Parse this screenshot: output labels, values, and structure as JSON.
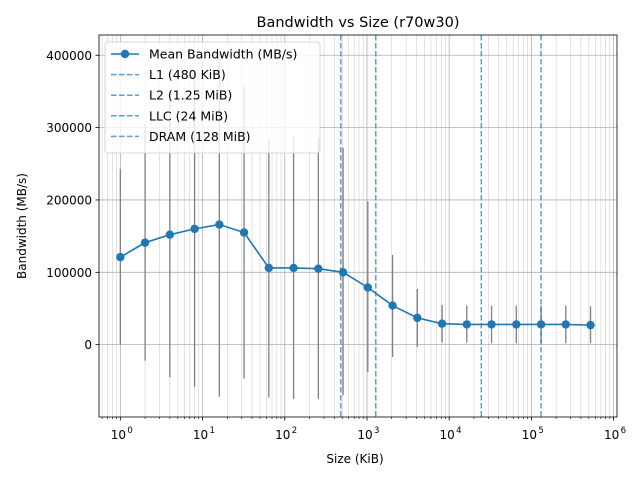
{
  "chart_data": {
    "type": "line",
    "title": "Bandwidth vs Size (r70w30)",
    "xlabel": "Size (KiB)",
    "ylabel": "Bandwidth (MB/s)",
    "xscale": "log",
    "xlim": [
      0.55,
      1100000
    ],
    "ylim": [
      -100000,
      428000
    ],
    "grid": true,
    "legend_position": "top-left",
    "x_ticks": [
      {
        "value": 1,
        "base": "10",
        "exp": "0"
      },
      {
        "value": 10,
        "base": "10",
        "exp": "1"
      },
      {
        "value": 100,
        "base": "10",
        "exp": "2"
      },
      {
        "value": 1000,
        "base": "10",
        "exp": "3"
      },
      {
        "value": 10000,
        "base": "10",
        "exp": "4"
      },
      {
        "value": 100000,
        "base": "10",
        "exp": "5"
      },
      {
        "value": 1000000,
        "base": "10",
        "exp": "6"
      }
    ],
    "y_ticks": [
      {
        "value": 0,
        "label": "0"
      },
      {
        "value": 100000,
        "label": "100000"
      },
      {
        "value": 200000,
        "label": "200000"
      },
      {
        "value": 300000,
        "label": "300000"
      },
      {
        "value": 400000,
        "label": "400000"
      }
    ],
    "series": [
      {
        "name": "Mean Bandwidth (MB/s)",
        "color": "#1f77b4",
        "x": [
          1,
          2,
          4,
          8,
          16,
          32,
          64,
          128,
          256,
          512,
          1024,
          2048,
          4096,
          8192,
          16384,
          32768,
          65536,
          131072,
          262144,
          524288
        ],
        "y": [
          121000,
          141000,
          152000,
          160000,
          166000,
          155000,
          106000,
          106000,
          105000,
          100000,
          79000,
          54000,
          37000,
          29000,
          28000,
          28000,
          28000,
          28000,
          28000,
          27000
        ],
        "err_low": [
          0,
          -22000,
          -45000,
          -58000,
          -72000,
          -47000,
          -73000,
          -75000,
          -75000,
          -70000,
          -38000,
          -17000,
          -3000,
          3000,
          3000,
          2000,
          2000,
          2000,
          2000,
          2000
        ],
        "err_high": [
          243000,
          305000,
          350000,
          378000,
          405000,
          358000,
          285000,
          287000,
          286000,
          272000,
          198000,
          124000,
          77000,
          55000,
          54000,
          54000,
          54000,
          54000,
          54000,
          53000
        ]
      }
    ],
    "reference_lines": [
      {
        "name": "L1 (480 KiB)",
        "x": 480,
        "color": "#1f77b4"
      },
      {
        "name": "L2 (1.25 MiB)",
        "x": 1280,
        "color": "#1f77b4"
      },
      {
        "name": "LLC (24 MiB)",
        "x": 24576,
        "color": "#1f77b4"
      },
      {
        "name": "DRAM (128 MiB)",
        "x": 131072,
        "color": "#1f77b4"
      }
    ]
  }
}
